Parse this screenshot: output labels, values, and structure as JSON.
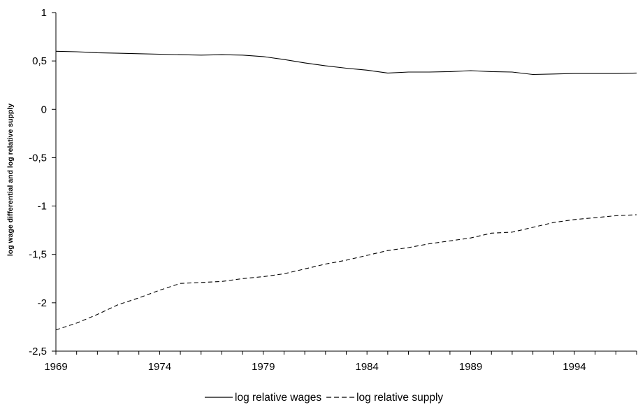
{
  "chart_data": {
    "type": "line",
    "title": "",
    "xlabel": "",
    "ylabel": "log wage differential and log relative supply",
    "xlim": [
      1969,
      1997
    ],
    "ylim": [
      -2.5,
      1
    ],
    "x_ticks": [
      1969,
      1974,
      1979,
      1984,
      1989,
      1994
    ],
    "x_tick_labels": [
      "1969",
      "1974",
      "1979",
      "1984",
      "1989",
      "1994"
    ],
    "y_ticks": [
      1,
      0.5,
      0,
      -0.5,
      -1,
      -1.5,
      -2,
      -2.5
    ],
    "y_tick_labels": [
      "1",
      "0,5",
      "0",
      "-0,5",
      "-1",
      "-1,5",
      "-2",
      "-2,5"
    ],
    "grid": false,
    "legend_position": "bottom",
    "x": [
      1969,
      1970,
      1971,
      1972,
      1973,
      1974,
      1975,
      1976,
      1977,
      1978,
      1979,
      1980,
      1981,
      1982,
      1983,
      1984,
      1985,
      1986,
      1987,
      1988,
      1989,
      1990,
      1991,
      1992,
      1993,
      1994,
      1995,
      1996,
      1997
    ],
    "series": [
      {
        "name": "log relative wages",
        "style": "solid",
        "color": "#000000",
        "values": [
          0.6,
          0.595,
          0.585,
          0.58,
          0.575,
          0.57,
          0.565,
          0.56,
          0.565,
          0.56,
          0.545,
          0.515,
          0.48,
          0.45,
          0.425,
          0.405,
          0.375,
          0.385,
          0.385,
          0.39,
          0.4,
          0.39,
          0.385,
          0.36,
          0.365,
          0.37,
          0.37,
          0.37,
          0.375
        ]
      },
      {
        "name": "log relative supply",
        "style": "dashed",
        "color": "#000000",
        "values": [
          -2.28,
          -2.21,
          -2.12,
          -2.02,
          -1.95,
          -1.87,
          -1.8,
          -1.79,
          -1.78,
          -1.75,
          -1.73,
          -1.7,
          -1.65,
          -1.6,
          -1.56,
          -1.51,
          -1.46,
          -1.43,
          -1.39,
          -1.36,
          -1.33,
          -1.28,
          -1.27,
          -1.22,
          -1.17,
          -1.14,
          -1.12,
          -1.1,
          -1.09
        ]
      }
    ]
  }
}
